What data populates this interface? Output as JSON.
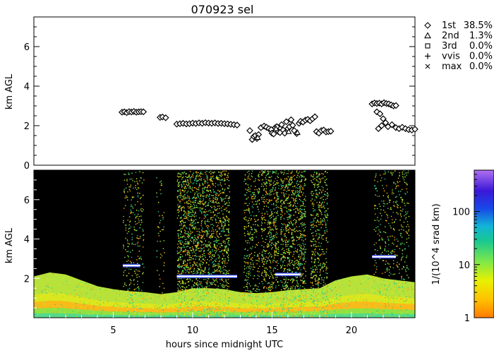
{
  "chart_data": [
    {
      "type": "scatter",
      "title": "070923 sel",
      "ylabel": "km AGL",
      "xlim": [
        0,
        24
      ],
      "ylim": [
        0,
        7.5
      ],
      "y_ticks": [
        0,
        2,
        4,
        6
      ],
      "legend": {
        "placement": "top-right",
        "entries": [
          {
            "marker": "diamond",
            "label": "1st",
            "pct": "38.5%"
          },
          {
            "marker": "triangle",
            "label": "2nd",
            "pct": "1.3%"
          },
          {
            "marker": "square",
            "label": "3rd",
            "pct": "0.0%"
          },
          {
            "marker": "plus",
            "label": "vvis",
            "pct": "0.0%"
          },
          {
            "marker": "cross",
            "label": "max",
            "pct": "0.0%"
          }
        ]
      },
      "series": [
        {
          "name": "1st",
          "points": [
            [
              5.55,
              2.68
            ],
            [
              5.7,
              2.7
            ],
            [
              5.85,
              2.66
            ],
            [
              6.0,
              2.71
            ],
            [
              6.15,
              2.69
            ],
            [
              6.3,
              2.72
            ],
            [
              6.45,
              2.68
            ],
            [
              6.6,
              2.7
            ],
            [
              6.75,
              2.71
            ],
            [
              6.9,
              2.7
            ],
            [
              7.95,
              2.42
            ],
            [
              8.1,
              2.44
            ],
            [
              8.3,
              2.4
            ],
            [
              9.0,
              2.08
            ],
            [
              9.2,
              2.1
            ],
            [
              9.4,
              2.12
            ],
            [
              9.6,
              2.09
            ],
            [
              9.8,
              2.1
            ],
            [
              10.0,
              2.13
            ],
            [
              10.2,
              2.11
            ],
            [
              10.4,
              2.14
            ],
            [
              10.6,
              2.12
            ],
            [
              10.8,
              2.15
            ],
            [
              11.0,
              2.13
            ],
            [
              11.2,
              2.12
            ],
            [
              11.4,
              2.14
            ],
            [
              11.6,
              2.11
            ],
            [
              11.8,
              2.12
            ],
            [
              12.0,
              2.1
            ],
            [
              12.2,
              2.09
            ],
            [
              12.4,
              2.07
            ],
            [
              12.6,
              2.05
            ],
            [
              12.8,
              2.03
            ],
            [
              13.6,
              1.75
            ],
            [
              13.75,
              1.3
            ],
            [
              13.85,
              1.45
            ],
            [
              13.95,
              1.5
            ],
            [
              14.05,
              1.35
            ],
            [
              14.15,
              1.55
            ],
            [
              14.3,
              1.9
            ],
            [
              14.5,
              1.98
            ],
            [
              14.65,
              1.92
            ],
            [
              14.8,
              1.85
            ],
            [
              14.95,
              1.8
            ],
            [
              15.0,
              1.62
            ],
            [
              15.1,
              1.58
            ],
            [
              15.2,
              1.9
            ],
            [
              15.3,
              1.95
            ],
            [
              15.4,
              1.7
            ],
            [
              15.5,
              1.65
            ],
            [
              15.6,
              2.05
            ],
            [
              15.7,
              1.78
            ],
            [
              15.8,
              1.62
            ],
            [
              15.9,
              2.2
            ],
            [
              16.0,
              1.85
            ],
            [
              16.1,
              1.95
            ],
            [
              16.2,
              2.3
            ],
            [
              16.3,
              2.02
            ],
            [
              16.4,
              1.75
            ],
            [
              16.55,
              1.6
            ],
            [
              16.7,
              2.12
            ],
            [
              16.8,
              2.22
            ],
            [
              16.95,
              2.18
            ],
            [
              17.1,
              2.28
            ],
            [
              17.25,
              2.32
            ],
            [
              17.4,
              2.25
            ],
            [
              17.55,
              2.35
            ],
            [
              17.7,
              2.45
            ],
            [
              17.8,
              1.7
            ],
            [
              17.95,
              1.62
            ],
            [
              18.1,
              1.75
            ],
            [
              18.25,
              1.78
            ],
            [
              18.4,
              1.68
            ],
            [
              18.55,
              1.7
            ],
            [
              18.7,
              1.72
            ],
            [
              21.3,
              3.1
            ],
            [
              21.45,
              3.15
            ],
            [
              21.6,
              3.12
            ],
            [
              21.75,
              3.14
            ],
            [
              21.9,
              3.1
            ],
            [
              22.05,
              3.16
            ],
            [
              22.2,
              3.12
            ],
            [
              22.35,
              3.1
            ],
            [
              22.5,
              3.05
            ],
            [
              22.65,
              3.0
            ],
            [
              22.8,
              3.02
            ],
            [
              21.6,
              2.7
            ],
            [
              21.8,
              2.6
            ],
            [
              22.0,
              2.35
            ],
            [
              22.15,
              2.15
            ],
            [
              21.9,
              2.0
            ],
            [
              21.7,
              1.85
            ],
            [
              22.3,
              1.95
            ],
            [
              22.55,
              2.05
            ],
            [
              22.8,
              1.9
            ],
            [
              23.0,
              1.85
            ],
            [
              23.2,
              1.92
            ],
            [
              23.4,
              1.85
            ],
            [
              23.6,
              1.8
            ],
            [
              23.8,
              1.78
            ],
            [
              24.0,
              1.82
            ]
          ]
        },
        {
          "name": "2nd",
          "points": [
            [
              14.1,
              1.4
            ],
            [
              15.25,
              1.85
            ],
            [
              16.05,
              1.7
            ],
            [
              16.6,
              1.65
            ]
          ]
        }
      ]
    },
    {
      "type": "heatmap",
      "ylabel": "km AGL",
      "xlabel": "hours since midnight UTC",
      "xlim": [
        0,
        24
      ],
      "ylim": [
        0,
        7.5
      ],
      "x_ticks": [
        5,
        10,
        15,
        20
      ],
      "y_ticks": [
        2,
        4,
        6
      ],
      "colorbar": {
        "label": "1/(10^4 srad km)",
        "scale": "log",
        "range": [
          1,
          600
        ],
        "ticks": [
          "1",
          "10",
          "100"
        ]
      },
      "noise_columns": [
        {
          "x0": 5.6,
          "x1": 6.9,
          "density": 0.35
        },
        {
          "x0": 7.7,
          "x1": 8.2,
          "density": 0.2
        },
        {
          "x0": 9.0,
          "x1": 12.3,
          "density": 0.85
        },
        {
          "x0": 13.2,
          "x1": 14.2,
          "density": 0.5
        },
        {
          "x0": 14.3,
          "x1": 15.4,
          "density": 0.75
        },
        {
          "x0": 15.5,
          "x1": 17.1,
          "density": 0.85
        },
        {
          "x0": 17.4,
          "x1": 18.5,
          "density": 0.7
        },
        {
          "x0": 21.4,
          "x1": 23.6,
          "density": 0.3
        }
      ],
      "boundary_layer": [
        [
          0,
          2.1
        ],
        [
          1,
          2.3
        ],
        [
          2,
          2.2
        ],
        [
          3,
          1.9
        ],
        [
          4,
          1.6
        ],
        [
          5,
          1.45
        ],
        [
          6,
          1.35
        ],
        [
          7,
          1.3
        ],
        [
          8,
          1.2
        ],
        [
          9,
          1.3
        ],
        [
          10,
          1.5
        ],
        [
          11,
          1.5
        ],
        [
          12,
          1.45
        ],
        [
          13,
          1.3
        ],
        [
          14,
          1.25
        ],
        [
          15,
          1.3
        ],
        [
          16,
          1.4
        ],
        [
          17,
          1.45
        ],
        [
          18,
          1.5
        ],
        [
          19,
          1.9
        ],
        [
          20,
          2.1
        ],
        [
          21,
          2.2
        ],
        [
          22,
          2.0
        ],
        [
          23,
          1.9
        ],
        [
          24,
          1.8
        ]
      ],
      "cloud_layers": [
        {
          "x0": 5.6,
          "x1": 6.7,
          "y": 2.65
        },
        {
          "x0": 9.0,
          "x1": 12.8,
          "y": 2.1
        },
        {
          "x0": 15.2,
          "x1": 16.8,
          "y": 2.2
        },
        {
          "x0": 21.3,
          "x1": 22.8,
          "y": 3.1
        }
      ]
    }
  ]
}
